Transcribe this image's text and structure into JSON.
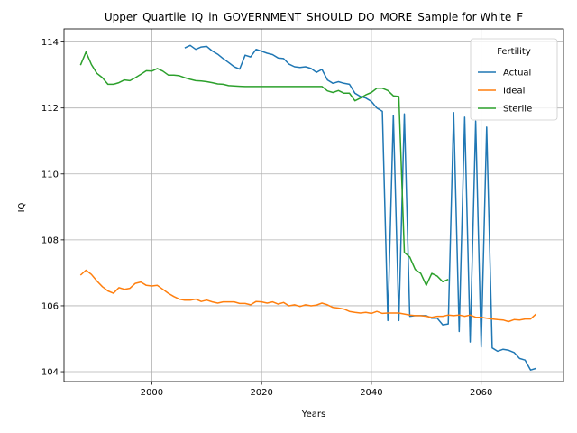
{
  "chart_data": {
    "type": "line",
    "title": "Upper_Quartile_IQ_in_GOVERNMENT_SHOULD_DO_MORE_Sample for White_F",
    "xlabel": "Years",
    "ylabel": "IQ",
    "xlim": [
      1984,
      2075
    ],
    "ylim": [
      103.7,
      114.4
    ],
    "xticks": [
      2000,
      2020,
      2040,
      2060
    ],
    "yticks": [
      104,
      106,
      108,
      110,
      112,
      114
    ],
    "grid": true,
    "legend": {
      "title": "Fertility",
      "position": "top-right"
    },
    "series": [
      {
        "name": "Actual",
        "color": "#1f77b4",
        "x": [
          2006,
          2007,
          2008,
          2009,
          2010,
          2011,
          2012,
          2013,
          2014,
          2015,
          2016,
          2017,
          2018,
          2019,
          2020,
          2021,
          2022,
          2023,
          2024,
          2025,
          2026,
          2027,
          2028,
          2029,
          2030,
          2031,
          2032,
          2033,
          2034,
          2035,
          2036,
          2037,
          2038,
          2039,
          2040,
          2041,
          2042,
          2043,
          2044,
          2045,
          2046,
          2047,
          2048,
          2049,
          2050,
          2051,
          2052,
          2053,
          2054,
          2055,
          2056,
          2057,
          2058,
          2059,
          2060,
          2061,
          2062,
          2063,
          2064,
          2065,
          2066,
          2067,
          2068,
          2069,
          2070
        ],
        "y": [
          113.82,
          113.9,
          113.78,
          113.85,
          113.87,
          113.73,
          113.63,
          113.5,
          113.38,
          113.25,
          113.18,
          113.6,
          113.55,
          113.78,
          113.72,
          113.66,
          113.62,
          113.52,
          113.5,
          113.33,
          113.25,
          113.23,
          113.25,
          113.2,
          113.08,
          113.17,
          112.85,
          112.75,
          112.8,
          112.75,
          112.72,
          112.45,
          112.35,
          112.3,
          112.2,
          112.0,
          111.9,
          105.55,
          111.78,
          105.55,
          111.82,
          105.68,
          105.7,
          105.7,
          105.7,
          105.62,
          105.62,
          105.42,
          105.45,
          111.86,
          105.22,
          111.72,
          104.9,
          111.6,
          104.75,
          111.42,
          104.72,
          104.62,
          104.68,
          104.65,
          104.58,
          104.4,
          104.35,
          104.05,
          104.1
        ]
      },
      {
        "name": "Ideal",
        "color": "#ff7f0e",
        "x": [
          1987,
          1988,
          1989,
          1990,
          1991,
          1992,
          1993,
          1994,
          1995,
          1996,
          1997,
          1998,
          1999,
          2000,
          2001,
          2002,
          2003,
          2004,
          2005,
          2006,
          2007,
          2008,
          2009,
          2010,
          2011,
          2012,
          2013,
          2014,
          2015,
          2016,
          2017,
          2018,
          2019,
          2020,
          2021,
          2022,
          2023,
          2024,
          2025,
          2026,
          2027,
          2028,
          2029,
          2030,
          2031,
          2032,
          2033,
          2034,
          2035,
          2036,
          2037,
          2038,
          2039,
          2040,
          2041,
          2042,
          2043,
          2044,
          2045,
          2046,
          2047,
          2048,
          2049,
          2050,
          2051,
          2052,
          2053,
          2054,
          2055,
          2056,
          2057,
          2058,
          2059,
          2060,
          2061,
          2062,
          2063,
          2064,
          2065,
          2066,
          2067,
          2068,
          2069,
          2070
        ],
        "y": [
          106.93,
          107.08,
          106.95,
          106.75,
          106.58,
          106.45,
          106.38,
          106.55,
          106.5,
          106.53,
          106.68,
          106.72,
          106.62,
          106.6,
          106.62,
          106.5,
          106.38,
          106.28,
          106.2,
          106.17,
          106.17,
          106.2,
          106.13,
          106.17,
          106.12,
          106.08,
          106.12,
          106.12,
          106.12,
          106.07,
          106.07,
          106.03,
          106.13,
          106.12,
          106.08,
          106.12,
          106.05,
          106.1,
          106.0,
          106.03,
          105.98,
          106.03,
          106.0,
          106.02,
          106.08,
          106.03,
          105.95,
          105.93,
          105.9,
          105.83,
          105.8,
          105.78,
          105.8,
          105.77,
          105.83,
          105.77,
          105.78,
          105.78,
          105.78,
          105.75,
          105.72,
          105.7,
          105.7,
          105.68,
          105.65,
          105.68,
          105.68,
          105.72,
          105.7,
          105.72,
          105.68,
          105.72,
          105.65,
          105.65,
          105.62,
          105.6,
          105.58,
          105.57,
          105.52,
          105.58,
          105.57,
          105.6,
          105.6,
          105.75
        ]
      },
      {
        "name": "Sterile",
        "color": "#2ca02c",
        "x": [
          1987,
          1988,
          1989,
          1990,
          1991,
          1992,
          1993,
          1994,
          1995,
          1996,
          1997,
          1998,
          1999,
          2000,
          2001,
          2002,
          2003,
          2004,
          2005,
          2006,
          2007,
          2008,
          2009,
          2010,
          2011,
          2012,
          2013,
          2014,
          2015,
          2016,
          2017,
          2018,
          2019,
          2020,
          2021,
          2022,
          2023,
          2024,
          2025,
          2026,
          2027,
          2028,
          2029,
          2030,
          2031,
          2032,
          2033,
          2034,
          2035,
          2036,
          2037,
          2038,
          2039,
          2040,
          2041,
          2042,
          2043,
          2044,
          2045,
          2046,
          2047,
          2048,
          2049,
          2050,
          2051,
          2052,
          2053,
          2054
        ],
        "y": [
          113.3,
          113.7,
          113.32,
          113.05,
          112.92,
          112.72,
          112.72,
          112.77,
          112.85,
          112.83,
          112.92,
          113.02,
          113.13,
          113.12,
          113.2,
          113.12,
          113.0,
          113.0,
          112.98,
          112.92,
          112.87,
          112.83,
          112.82,
          112.8,
          112.77,
          112.73,
          112.72,
          112.68,
          112.67,
          112.66,
          112.65,
          112.65,
          112.65,
          112.65,
          112.65,
          112.65,
          112.65,
          112.65,
          112.65,
          112.65,
          112.65,
          112.65,
          112.65,
          112.65,
          112.65,
          112.52,
          112.47,
          112.53,
          112.45,
          112.45,
          112.22,
          112.3,
          112.4,
          112.47,
          112.6,
          112.6,
          112.53,
          112.37,
          112.35,
          107.62,
          107.48,
          107.1,
          106.98,
          106.62,
          106.98,
          106.9,
          106.73,
          106.8
        ]
      }
    ]
  }
}
